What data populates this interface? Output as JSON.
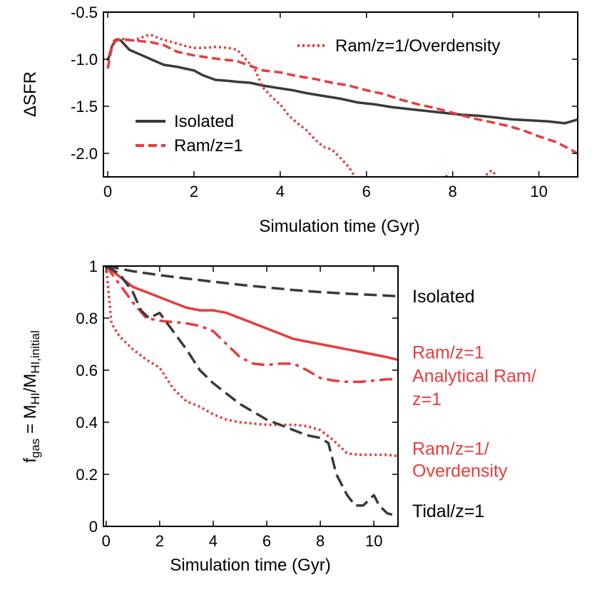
{
  "colors": {
    "gray": "#3a3a3a",
    "red": "#e83c3c"
  },
  "chart_data": [
    {
      "type": "line",
      "xlabel": "Simulation time (Gyr)",
      "ylabel": "ΔSFR",
      "xlim": [
        -0.1,
        10.9
      ],
      "ylim": [
        -2.25,
        -0.5
      ],
      "xticks": [
        0,
        2,
        4,
        6,
        8,
        10
      ],
      "yticks": [
        -0.5,
        -1.0,
        -1.5,
        -2.0
      ],
      "ytick_labels": [
        "-0.5",
        "-1.0",
        "-1.5",
        "-2.0"
      ],
      "legend": [
        {
          "series": "Isolated",
          "text": "Isolated"
        },
        {
          "series": "Ram/z=1",
          "text": "Ram/z=1"
        },
        {
          "series": "Ram/z=1/Overdensity",
          "text": "Ram/z=1/Overdensity"
        }
      ],
      "series": [
        {
          "name": "Isolated",
          "color": "#3a3a3a",
          "dash": "solid",
          "x": [
            0,
            0.1,
            0.2,
            0.3,
            0.5,
            0.8,
            1.0,
            1.3,
            1.6,
            2.0,
            2.2,
            2.5,
            2.8,
            3.0,
            3.3,
            3.6,
            4.0,
            4.3,
            4.6,
            5.0,
            5.4,
            5.8,
            6.2,
            6.6,
            7.0,
            7.4,
            7.8,
            8.2,
            8.6,
            9.0,
            9.4,
            9.8,
            10.2,
            10.6,
            10.9
          ],
          "y": [
            -1.02,
            -0.86,
            -0.79,
            -0.8,
            -0.9,
            -0.96,
            -1.0,
            -1.06,
            -1.08,
            -1.12,
            -1.17,
            -1.22,
            -1.23,
            -1.24,
            -1.25,
            -1.28,
            -1.31,
            -1.33,
            -1.36,
            -1.39,
            -1.42,
            -1.46,
            -1.48,
            -1.51,
            -1.53,
            -1.55,
            -1.57,
            -1.59,
            -1.6,
            -1.62,
            -1.64,
            -1.65,
            -1.66,
            -1.68,
            -1.64
          ]
        },
        {
          "name": "Ram/z=1",
          "color": "#e83c3c",
          "dash": "dashed",
          "x": [
            0,
            0.1,
            0.2,
            0.3,
            0.6,
            1.0,
            1.3,
            1.6,
            2.0,
            2.3,
            2.6,
            3.0,
            3.3,
            3.6,
            4.0,
            4.4,
            4.8,
            5.2,
            5.6,
            6.0,
            6.4,
            6.8,
            7.2,
            7.6,
            8.0,
            8.4,
            8.8,
            9.2,
            9.6,
            10.0,
            10.4,
            10.9
          ],
          "y": [
            -1.1,
            -0.86,
            -0.8,
            -0.79,
            -0.8,
            -0.82,
            -0.85,
            -0.92,
            -0.96,
            -0.98,
            -1.0,
            -1.02,
            -1.07,
            -1.12,
            -1.14,
            -1.18,
            -1.21,
            -1.25,
            -1.28,
            -1.33,
            -1.37,
            -1.43,
            -1.48,
            -1.52,
            -1.57,
            -1.62,
            -1.66,
            -1.7,
            -1.75,
            -1.82,
            -1.88,
            -2.0
          ]
        },
        {
          "name": "Ram/z=1/Overdensity",
          "color": "#e83c3c",
          "dash": "dotted",
          "x": [
            0,
            0.15,
            0.3,
            0.6,
            0.9,
            1.0,
            1.2,
            1.5,
            1.8,
            2.0,
            2.2,
            2.5,
            2.8,
            3.0,
            3.2,
            3.4,
            3.6,
            3.8,
            4.0,
            4.2,
            4.4,
            4.6,
            4.8,
            5.0,
            5.2,
            5.4,
            5.6,
            5.8,
            null,
            7.8,
            7.9,
            null,
            8.6,
            8.9,
            9.0
          ],
          "y": [
            -1.02,
            -0.8,
            -0.78,
            -0.8,
            -0.75,
            -0.74,
            -0.78,
            -0.82,
            -0.86,
            -0.88,
            -0.88,
            -0.87,
            -0.88,
            -0.9,
            -1.0,
            -1.1,
            -1.3,
            -1.4,
            -1.48,
            -1.6,
            -1.68,
            -1.75,
            -1.85,
            -1.93,
            -1.96,
            -2.05,
            -2.15,
            -2.3,
            null,
            -2.3,
            -2.2,
            null,
            -2.3,
            -2.18,
            -2.23
          ]
        }
      ]
    },
    {
      "type": "line",
      "xlabel": "Simulation time (Gyr)",
      "ylabel_main": "f",
      "ylabel_sub1": "gas",
      "ylabel_mid": " = M",
      "ylabel_sub2": "HI",
      "ylabel_slash": "/M",
      "ylabel_sub3": "HI,initial",
      "xlim": [
        -0.1,
        10.9
      ],
      "ylim": [
        0,
        1
      ],
      "xticks": [
        0,
        2,
        4,
        6,
        8,
        10
      ],
      "yticks": [
        0,
        0.2,
        0.4,
        0.6,
        0.8,
        1
      ],
      "ytick_labels": [
        "0",
        "0.2",
        "0.4",
        "0.6",
        "0.8",
        "1"
      ],
      "side_labels": [
        {
          "text": "Isolated",
          "color": "#000000",
          "y": 0.885
        },
        {
          "text": "Ram/z=1",
          "color": "#e83c3c",
          "y": 0.67
        },
        {
          "text": "Analytical Ram/",
          "color": "#e83c3c",
          "y": 0.58
        },
        {
          "text": "z=1",
          "color": "#e83c3c",
          "y": 0.49
        },
        {
          "text": "Ram/z=1/",
          "color": "#e83c3c",
          "y": 0.3
        },
        {
          "text": "Overdensity",
          "color": "#e83c3c",
          "y": 0.215
        },
        {
          "text": "Tidal/z=1",
          "color": "#000000",
          "y": 0.06
        }
      ],
      "series": [
        {
          "name": "Isolated",
          "color": "#3a3a3a",
          "dash": "longdash",
          "x": [
            0,
            1,
            2,
            3,
            4,
            5,
            6,
            7,
            8,
            9,
            10,
            10.9
          ],
          "y": [
            1.0,
            0.98,
            0.965,
            0.952,
            0.94,
            0.928,
            0.918,
            0.908,
            0.9,
            0.894,
            0.889,
            0.884
          ]
        },
        {
          "name": "Ram/z=1",
          "color": "#e83c3c",
          "dash": "solid",
          "x": [
            0,
            0.5,
            1,
            1.5,
            2,
            2.5,
            3,
            3.5,
            4,
            4.5,
            5,
            5.5,
            6,
            6.5,
            7,
            7.5,
            8,
            8.5,
            9,
            9.5,
            10,
            10.5,
            10.9
          ],
          "y": [
            1.0,
            0.96,
            0.92,
            0.9,
            0.88,
            0.86,
            0.84,
            0.83,
            0.83,
            0.82,
            0.8,
            0.78,
            0.76,
            0.74,
            0.72,
            0.71,
            0.7,
            0.69,
            0.68,
            0.67,
            0.66,
            0.65,
            0.64
          ]
        },
        {
          "name": "Analytical Ram/z=1",
          "color": "#e83c3c",
          "dash": "dashdot",
          "x": [
            0,
            0.5,
            1,
            1.5,
            2,
            2.5,
            3,
            3.5,
            4,
            4.5,
            5,
            5.5,
            6,
            6.5,
            7,
            7.5,
            8,
            8.5,
            9,
            9.5,
            10,
            10.5,
            10.9
          ],
          "y": [
            1.0,
            0.93,
            0.86,
            0.8,
            0.79,
            0.785,
            0.78,
            0.77,
            0.75,
            0.7,
            0.65,
            0.625,
            0.62,
            0.625,
            0.625,
            0.6,
            0.57,
            0.56,
            0.555,
            0.555,
            0.56,
            0.565,
            0.565
          ]
        },
        {
          "name": "Ram/z=1/Overdensity",
          "color": "#e83c3c",
          "dash": "dotted",
          "x": [
            0,
            0.2,
            0.5,
            1,
            1.5,
            2,
            2.5,
            3,
            3.5,
            4,
            4.5,
            5,
            5.5,
            6,
            6.5,
            7,
            7.5,
            8,
            8.5,
            9,
            9.5,
            10,
            10.5,
            10.9
          ],
          "y": [
            1.0,
            0.78,
            0.73,
            0.68,
            0.64,
            0.61,
            0.53,
            0.48,
            0.46,
            0.43,
            0.41,
            0.4,
            0.395,
            0.39,
            0.39,
            0.39,
            0.385,
            0.37,
            0.33,
            0.28,
            0.275,
            0.275,
            0.275,
            0.27
          ]
        },
        {
          "name": "Tidal/z=1",
          "color": "#3a3a3a",
          "dash": "longdash",
          "x": [
            0,
            0.5,
            1,
            1.3,
            1.6,
            2,
            2.5,
            3,
            3.5,
            4,
            4.5,
            5,
            5.5,
            6,
            6.5,
            7,
            7.5,
            8,
            8.3,
            8.6,
            9,
            9.3,
            9.6,
            9.8,
            10.0,
            10.2,
            10.5,
            10.9
          ],
          "y": [
            1.0,
            0.97,
            0.9,
            0.83,
            0.8,
            0.82,
            0.75,
            0.68,
            0.6,
            0.55,
            0.51,
            0.47,
            0.44,
            0.41,
            0.39,
            0.37,
            0.35,
            0.34,
            0.32,
            0.2,
            0.12,
            0.08,
            0.08,
            0.1,
            0.12,
            0.08,
            0.05,
            0.04
          ]
        }
      ]
    }
  ]
}
